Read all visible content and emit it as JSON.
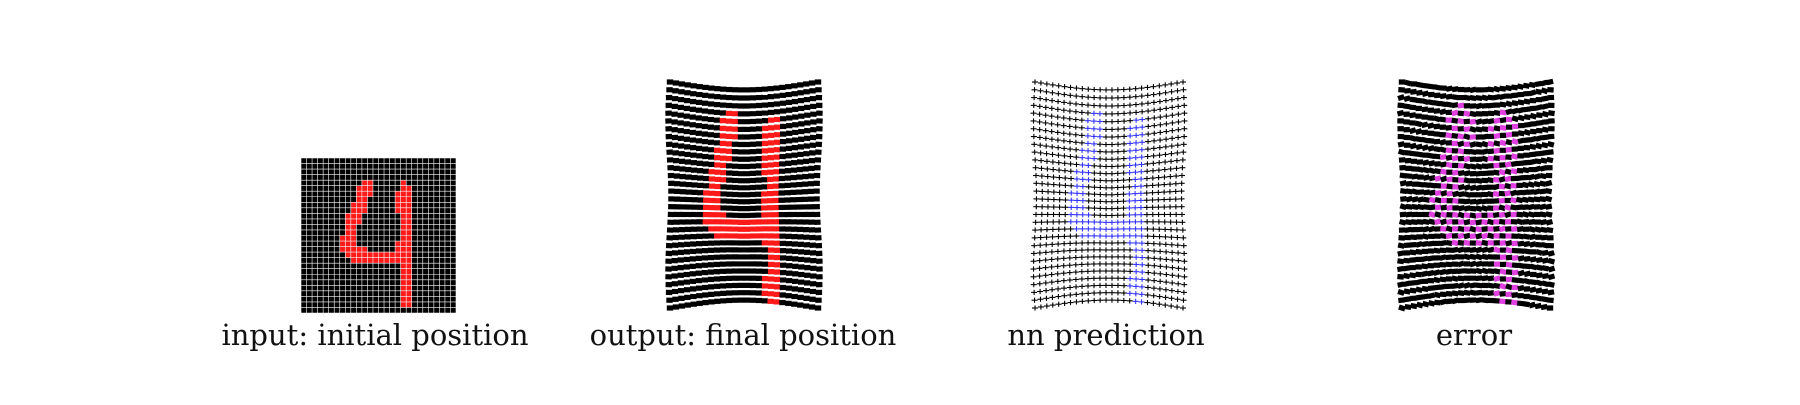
{
  "panels": [
    {
      "id": "input",
      "caption": "input: initial position"
    },
    {
      "id": "output",
      "caption": "output: final position"
    },
    {
      "id": "prediction",
      "caption": "nn prediction"
    },
    {
      "id": "error",
      "caption": "error"
    }
  ],
  "colors": {
    "background": "#ffffff",
    "mesh": "#000000",
    "grid_lines": "#ffffff",
    "digit_true": "#ff1a1a",
    "digit_predicted": "#3333ff",
    "error_highlight": "#e040e0"
  }
}
